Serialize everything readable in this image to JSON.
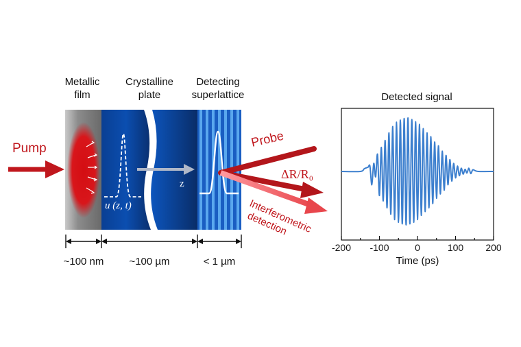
{
  "layers": {
    "metallic_film": [
      "Metallic",
      "film"
    ],
    "crystalline_plate": [
      "Crystalline",
      "plate"
    ],
    "detecting_superlattice": [
      "Detecting",
      "superlattice"
    ]
  },
  "beams": {
    "pump": "Pump",
    "probe": "Probe",
    "reflectance": "ΔR/R₀",
    "interferometric": [
      "Interferometric",
      "detection"
    ]
  },
  "wave_labels": {
    "strain": "u (z, t)",
    "axis": "z"
  },
  "dimensions": [
    "~100 nm",
    "~100 µm",
    "< 1 µm"
  ],
  "colors": {
    "pump_red": "#c0171d",
    "probe_red": "#b3161b",
    "detect_pink": "#ee6a6f",
    "crystal_blue": "#0a4aa8",
    "signal_blue": "#3c7fce"
  },
  "chart_data": {
    "type": "line",
    "title": "Detected signal",
    "xlabel": "Time (ps)",
    "ylabel": "",
    "xlim": [
      -200,
      200
    ],
    "x_ticks": [
      "-200",
      "-100",
      "0",
      "100",
      "200"
    ],
    "grid": false,
    "series": [
      {
        "x": [
          -200,
          -150,
          -140,
          -130,
          -125,
          -120,
          -115,
          -110,
          -105,
          -100,
          -95,
          -90,
          -85,
          -80,
          -75,
          -70,
          -65,
          -60,
          -55,
          -50,
          -45,
          -40,
          -35,
          -30,
          -25,
          -20,
          -15,
          -10,
          -5,
          0,
          5,
          10,
          15,
          20,
          25,
          30,
          35,
          40,
          45,
          50,
          55,
          60,
          65,
          70,
          75,
          80,
          85,
          90,
          95,
          100,
          105,
          110,
          115,
          120,
          125,
          130,
          135,
          140,
          145,
          150,
          160,
          200
        ],
        "y": [
          0,
          0,
          0.05,
          0.08,
          0.1,
          -0.25,
          0.15,
          -0.1,
          0.32,
          -0.45,
          0.45,
          -0.55,
          0.58,
          -0.68,
          0.72,
          -0.8,
          0.84,
          -0.9,
          0.92,
          -0.95,
          0.96,
          -0.98,
          0.99,
          -1,
          1,
          -0.98,
          0.97,
          -0.95,
          0.93,
          -0.9,
          0.88,
          -0.82,
          0.8,
          -0.75,
          0.72,
          -0.68,
          0.65,
          -0.6,
          0.55,
          -0.5,
          0.48,
          -0.42,
          0.38,
          -0.35,
          0.3,
          -0.25,
          0.22,
          -0.18,
          0.15,
          -0.12,
          0.1,
          -0.08,
          0.06,
          -0.05,
          0.04,
          -0.03,
          0.06,
          -0.04,
          0.03,
          0.02,
          0,
          0
        ]
      }
    ]
  }
}
